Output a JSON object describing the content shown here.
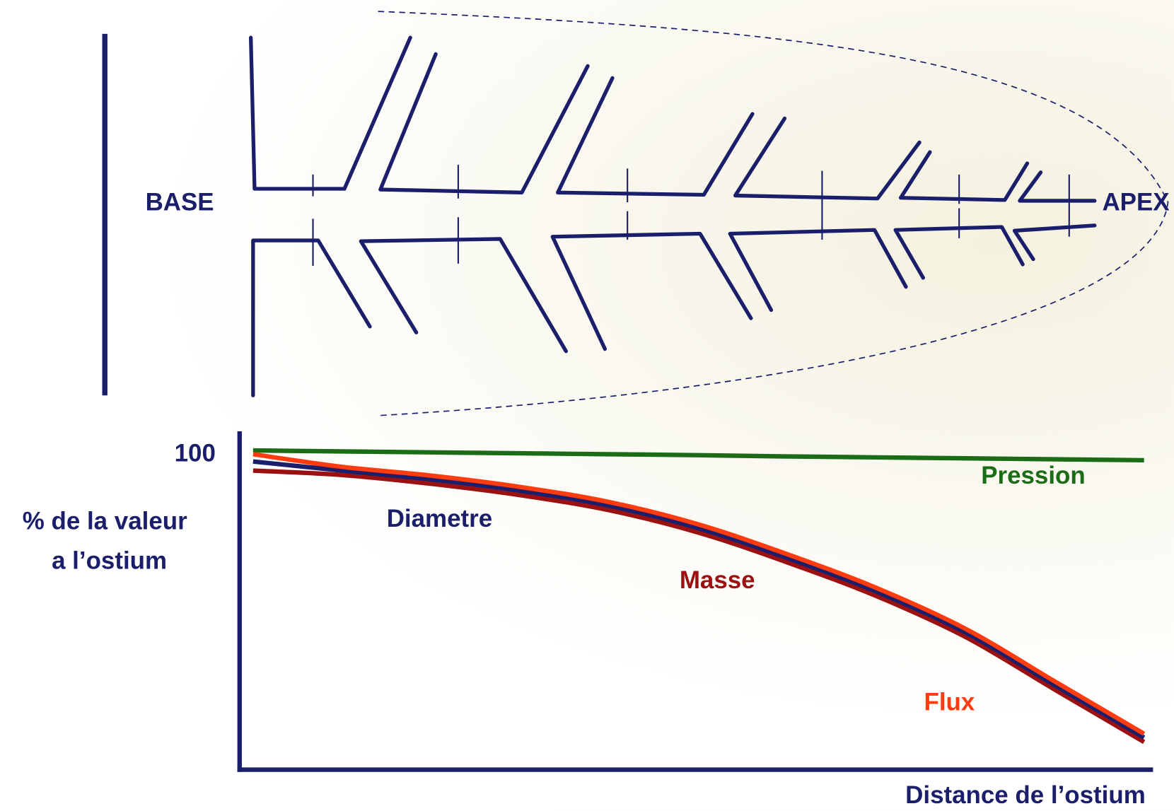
{
  "diagram": {
    "base_label": "BASE",
    "apex_label": "APEX"
  },
  "chart_data": {
    "type": "line",
    "x_label": "Distance de l’ostium",
    "y_label": [
      "% de la valeur",
      "a l’ostium"
    ],
    "categories": [
      null,
      null,
      null,
      null,
      null,
      null,
      null,
      null,
      null,
      null,
      null
    ],
    "series": [
      {
        "name": "Pression",
        "color": "#1b6b17",
        "values": [
          101.4,
          101.1,
          100.8,
          100.5,
          100.2,
          99.9,
          99.5,
          99.2,
          98.9,
          98.6,
          98.3
        ]
      },
      {
        "name": "Diametre",
        "color": "#1b1f6b",
        "values": [
          97.9,
          95,
          92.2,
          88.6,
          83.8,
          76.7,
          67.2,
          56.5,
          43.5,
          26.8,
          10.2
        ]
      },
      {
        "name": "Masse",
        "color": "#9b1010",
        "values": [
          95,
          93.6,
          90.8,
          87.2,
          82.4,
          75.3,
          65.8,
          55.1,
          42.1,
          25.4,
          8.8
        ]
      },
      {
        "name": "Flux",
        "color": "#ff3b10",
        "values": [
          100.2,
          96.2,
          93.4,
          89.8,
          85,
          77.9,
          68.4,
          57.7,
          44.7,
          28,
          11.4
        ]
      }
    ],
    "ylim": [
      0,
      107
    ],
    "yticks": [
      100
    ]
  }
}
